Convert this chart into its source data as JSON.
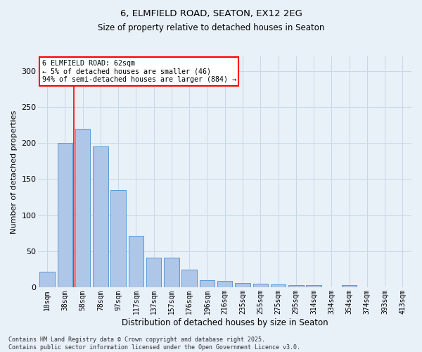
{
  "title1": "6, ELMFIELD ROAD, SEATON, EX12 2EG",
  "title2": "Size of property relative to detached houses in Seaton",
  "xlabel": "Distribution of detached houses by size in Seaton",
  "ylabel": "Number of detached properties",
  "categories": [
    "18sqm",
    "38sqm",
    "58sqm",
    "78sqm",
    "97sqm",
    "117sqm",
    "137sqm",
    "157sqm",
    "176sqm",
    "196sqm",
    "216sqm",
    "235sqm",
    "255sqm",
    "275sqm",
    "295sqm",
    "314sqm",
    "334sqm",
    "354sqm",
    "374sqm",
    "393sqm",
    "413sqm"
  ],
  "values": [
    22,
    200,
    220,
    195,
    135,
    72,
    41,
    41,
    25,
    10,
    9,
    6,
    5,
    4,
    3,
    3,
    0,
    3,
    0,
    0,
    0
  ],
  "bar_color": "#aec6e8",
  "bar_edge_color": "#5b9bd5",
  "grid_color": "#c8d8e8",
  "bg_color": "#e8f0f8",
  "vline_x_index": 2,
  "annotation_text": "6 ELMFIELD ROAD: 62sqm\n← 5% of detached houses are smaller (46)\n94% of semi-detached houses are larger (884) →",
  "annotation_box_color": "white",
  "annotation_box_edge": "red",
  "vline_color": "red",
  "footer": "Contains HM Land Registry data © Crown copyright and database right 2025.\nContains public sector information licensed under the Open Government Licence v3.0.",
  "ylim": [
    0,
    320
  ],
  "yticks": [
    0,
    50,
    100,
    150,
    200,
    250,
    300
  ]
}
